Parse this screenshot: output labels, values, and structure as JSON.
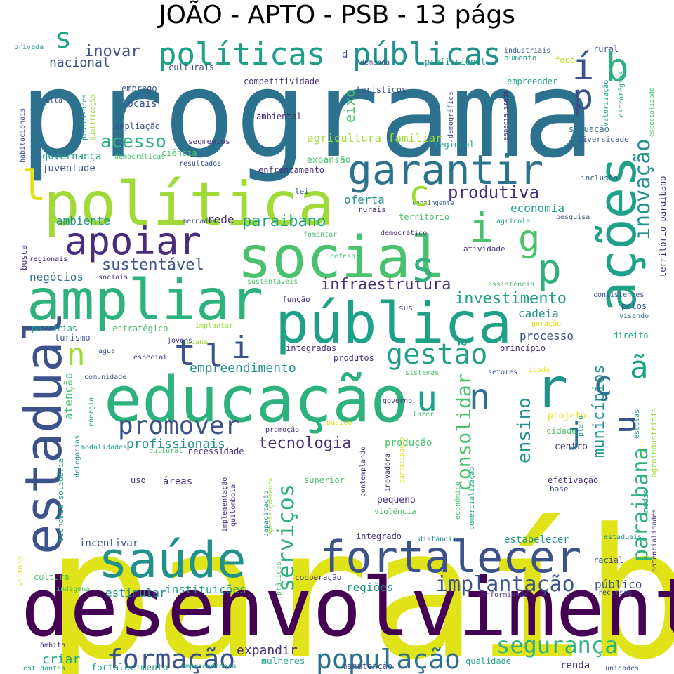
{
  "title": "JOÃO - APTO - PSB - 13 págs",
  "palette": {
    "yellow": "#dfe318",
    "lime": "#a0da39",
    "lgreen": "#4ac16d",
    "green": "#2db27d",
    "teal": "#1fa187",
    "cyan": "#21918c",
    "blue": "#2c728e",
    "navy": "#3b528b",
    "indigo": "#472d7b",
    "purple": "#440154",
    "paleyellow": "#c8e020"
  },
  "words": [
    {
      "text": "paraíba",
      "color": "yellow"
    },
    {
      "text": "programa",
      "color": "blue"
    },
    {
      "text": "desenvolvimento",
      "color": "purple"
    },
    {
      "text": "educação",
      "color": "green"
    },
    {
      "text": "política",
      "color": "lime"
    },
    {
      "text": "social",
      "color": "lgreen"
    },
    {
      "text": "ampliar",
      "color": "green"
    },
    {
      "text": "pública",
      "color": "teal"
    },
    {
      "text": "saúde",
      "color": "cyan"
    },
    {
      "text": "fortalecer",
      "color": "navy"
    },
    {
      "text": "estadual",
      "color": "navy"
    },
    {
      "text": "ações",
      "color": "teal"
    },
    {
      "text": "garantir",
      "color": "blue"
    },
    {
      "text": "apoiar",
      "color": "indigo"
    },
    {
      "text": "públicas",
      "color": "cyan"
    },
    {
      "text": "políticas",
      "color": "teal"
    },
    {
      "text": "promover",
      "color": "navy"
    },
    {
      "text": "gestão",
      "color": "teal"
    },
    {
      "text": "formação",
      "color": "navy"
    },
    {
      "text": "população",
      "color": "blue"
    },
    {
      "text": "segurança",
      "color": "green"
    },
    {
      "text": "serviços",
      "color": "green"
    },
    {
      "text": "implantação",
      "color": "navy"
    },
    {
      "text": "paraibana",
      "color": "green"
    },
    {
      "text": "inovação",
      "color": "cyan"
    },
    {
      "text": "consolidar",
      "color": "lgreen"
    },
    {
      "text": "ensino",
      "color": "cyan"
    },
    {
      "text": "tecnologia",
      "color": "indigo"
    },
    {
      "text": "municípios",
      "color": "cyan"
    },
    {
      "text": "produtiva",
      "color": "indigo"
    },
    {
      "text": "acesso",
      "color": "green"
    },
    {
      "text": "paraibano",
      "color": "teal"
    },
    {
      "text": "infraestrutura",
      "color": "indigo"
    },
    {
      "text": "investimento",
      "color": "teal"
    },
    {
      "text": "sustentável",
      "color": "navy"
    },
    {
      "text": "inovar",
      "color": "navy"
    },
    {
      "text": "nacional",
      "color": "navy"
    },
    {
      "text": "empreendimento",
      "color": "cyan"
    },
    {
      "text": "profissionais",
      "color": "cyan"
    },
    {
      "text": "expandir",
      "color": "indigo"
    },
    {
      "text": "criar",
      "color": "teal"
    },
    {
      "text": "estimular",
      "color": "cyan"
    },
    {
      "text": "instituições",
      "color": "teal"
    },
    {
      "text": "regiões",
      "color": "cyan"
    },
    {
      "text": "público",
      "color": "navy"
    },
    {
      "text": "eixo",
      "color": "lgreen"
    },
    {
      "text": "agricultura familiar",
      "color": "lime"
    },
    {
      "text": "economia",
      "color": "teal"
    },
    {
      "text": "oferta",
      "color": "cyan"
    },
    {
      "text": "rede",
      "color": "indigo"
    },
    {
      "text": "ambiente",
      "color": "cyan"
    },
    {
      "text": "negócios",
      "color": "blue"
    },
    {
      "text": "cadeia",
      "color": "cyan"
    },
    {
      "text": "processo",
      "color": "navy"
    },
    {
      "text": "atenção",
      "color": "lgreen"
    },
    {
      "text": "produção",
      "color": "lgreen"
    },
    {
      "text": "governança",
      "color": "teal"
    },
    {
      "text": "juventude",
      "color": "navy"
    },
    {
      "text": "locais",
      "color": "navy"
    },
    {
      "text": "culturais",
      "color": "navy"
    },
    {
      "text": "competitividade",
      "color": "indigo"
    },
    {
      "text": "profissional",
      "color": "teal"
    },
    {
      "text": "empreender",
      "color": "teal"
    },
    {
      "text": "rural",
      "color": "navy"
    },
    {
      "text": "foco",
      "color": "paleyellow"
    },
    {
      "text": "aumento",
      "color": "teal"
    },
    {
      "text": "industriais",
      "color": "navy"
    },
    {
      "text": "privada",
      "color": "cyan"
    },
    {
      "text": "turísticos",
      "color": "navy"
    },
    {
      "text": "emprego",
      "color": "navy"
    },
    {
      "text": "ampliação",
      "color": "navy"
    },
    {
      "text": "ambiental",
      "color": "indigo"
    },
    {
      "text": "segmentos",
      "color": "indigo"
    },
    {
      "text": "ciência",
      "color": "lgreen"
    },
    {
      "text": "democráticas",
      "color": "lgreen"
    },
    {
      "text": "resultados",
      "color": "navy"
    },
    {
      "text": "enfrentamento",
      "color": "indigo"
    },
    {
      "text": "expansão",
      "color": "lgreen"
    },
    {
      "text": "regional",
      "color": "teal"
    },
    {
      "text": "situação",
      "color": "blue"
    },
    {
      "text": "diversidade",
      "color": "navy"
    },
    {
      "text": "inclusão",
      "color": "navy"
    },
    {
      "text": "projeto",
      "color": "yellow"
    },
    {
      "text": "cidade",
      "color": "lgreen"
    },
    {
      "text": "centro",
      "color": "indigo"
    },
    {
      "text": "lei",
      "color": "navy"
    },
    {
      "text": "rurais",
      "color": "indigo"
    },
    {
      "text": "território",
      "color": "lgreen"
    },
    {
      "text": "mercados",
      "color": "navy"
    },
    {
      "text": "democrático",
      "color": "indigo"
    },
    {
      "text": "fomentar",
      "color": "lgreen"
    },
    {
      "text": "contingente",
      "color": "navy"
    },
    {
      "text": "pesquisa",
      "color": "navy"
    },
    {
      "text": "agrícola",
      "color": "teal"
    },
    {
      "text": "atividade",
      "color": "indigo"
    },
    {
      "text": "busca",
      "color": "indigo"
    },
    {
      "text": "regionais",
      "color": "indigo"
    },
    {
      "text": "sociais",
      "color": "indigo"
    },
    {
      "text": "defesa",
      "color": "lgreen"
    },
    {
      "text": "sustentáveis",
      "color": "lgreen"
    },
    {
      "text": "assistência",
      "color": "lgreen"
    },
    {
      "text": "função",
      "color": "indigo"
    },
    {
      "text": "sus",
      "color": "indigo"
    },
    {
      "text": "consistentes",
      "color": "navy"
    },
    {
      "text": "polos",
      "color": "navy"
    },
    {
      "text": "visando",
      "color": "blue"
    },
    {
      "text": "parcerias",
      "color": "teal"
    },
    {
      "text": "estratégico",
      "color": "lgreen"
    },
    {
      "text": "implantar",
      "color": "lime"
    },
    {
      "text": "geração",
      "color": "yellow"
    },
    {
      "text": "turismo",
      "color": "navy"
    },
    {
      "text": "jovens",
      "color": "indigo"
    },
    {
      "text": "cigana",
      "color": "lime"
    },
    {
      "text": "direito",
      "color": "teal"
    },
    {
      "text": "água",
      "color": "navy"
    },
    {
      "text": "especial",
      "color": "indigo"
    },
    {
      "text": "integradas",
      "color": "indigo"
    },
    {
      "text": "princípio",
      "color": "indigo"
    },
    {
      "text": "produtos",
      "color": "indigo"
    },
    {
      "text": "sistemas",
      "color": "lgreen"
    },
    {
      "text": "setores",
      "color": "navy"
    },
    {
      "text": "idade",
      "color": "yellow"
    },
    {
      "text": "comunidade",
      "color": "navy"
    },
    {
      "text": "governo",
      "color": "indigo"
    },
    {
      "text": "lazer",
      "color": "lgreen"
    },
    {
      "text": "promoção",
      "color": "indigo"
    },
    {
      "text": "básico",
      "color": "yellow"
    },
    {
      "text": "cultural",
      "color": "lgreen"
    },
    {
      "text": "necessidade",
      "color": "indigo"
    },
    {
      "text": "modalidades",
      "color": "teal"
    },
    {
      "text": "plano",
      "color": "teal"
    },
    {
      "text": "escolas",
      "color": "cyan"
    },
    {
      "text": "uso",
      "color": "indigo"
    },
    {
      "text": "áreas",
      "color": "indigo"
    },
    {
      "text": "superior",
      "color": "lgreen"
    },
    {
      "text": "efetivação",
      "color": "indigo"
    },
    {
      "text": "base",
      "color": "navy"
    },
    {
      "text": "pequeno",
      "color": "indigo"
    },
    {
      "text": "violência",
      "color": "lgreen"
    },
    {
      "text": "incentivar",
      "color": "navy"
    },
    {
      "text": "integrado",
      "color": "indigo"
    },
    {
      "text": "distância",
      "color": "cyan"
    },
    {
      "text": "estabelecer",
      "color": "cyan"
    },
    {
      "text": "estaduais",
      "color": "cyan"
    },
    {
      "text": "racial",
      "color": "navy"
    },
    {
      "text": "cultura",
      "color": "lgreen"
    },
    {
      "text": "indígena",
      "color": "lgreen"
    },
    {
      "text": "cooperação",
      "color": "indigo"
    },
    {
      "text": "conformidade",
      "color": "indigo"
    },
    {
      "text": "recursos",
      "color": "navy"
    },
    {
      "text": "fortalecimento",
      "color": "teal"
    },
    {
      "text": "empreendedora",
      "color": "teal"
    },
    {
      "text": "mulheres",
      "color": "teal"
    },
    {
      "text": "manutenção",
      "color": "navy"
    },
    {
      "text": "qualidade",
      "color": "teal"
    },
    {
      "text": "renda",
      "color": "indigo"
    },
    {
      "text": "unidades",
      "color": "navy"
    },
    {
      "text": "estudantes",
      "color": "teal"
    },
    {
      "text": "âmbito",
      "color": "indigo"
    },
    {
      "text": "voltado",
      "color": "yellow"
    },
    {
      "text": "alta",
      "color": "navy"
    },
    {
      "text": "demanda",
      "color": "navy"
    },
    {
      "text": "habitacionais",
      "color": "navy"
    },
    {
      "text": "professores",
      "color": "teal"
    },
    {
      "text": "qualificação",
      "color": "lime"
    },
    {
      "text": "demográfica",
      "color": "navy"
    },
    {
      "text": "especializada",
      "color": "indigo"
    },
    {
      "text": "valorização",
      "color": "teal"
    },
    {
      "text": "estratégias",
      "color": "teal"
    },
    {
      "text": "especializado",
      "color": "lgreen"
    },
    {
      "text": "território paraibano",
      "color": "indigo"
    },
    {
      "text": "energia",
      "color": "teal"
    },
    {
      "text": "economia solidária",
      "color": "teal"
    },
    {
      "text": "delegacias",
      "color": "cyan"
    },
    {
      "text": "implementação",
      "color": "indigo"
    },
    {
      "text": "quilombola",
      "color": "indigo"
    },
    {
      "text": "aperfeiçoamento",
      "color": "lime"
    },
    {
      "text": "práticas",
      "color": "lgreen"
    },
    {
      "text": "capacitação",
      "color": "cyan"
    },
    {
      "text": "contemplando",
      "color": "indigo"
    },
    {
      "text": "participação",
      "color": "yellow"
    },
    {
      "text": "comercialização",
      "color": "teal"
    },
    {
      "text": "inovadora",
      "color": "indigo"
    },
    {
      "text": "econômico",
      "color": "lgreen"
    },
    {
      "text": "agroindustriais",
      "color": "lime"
    },
    {
      "text": "médio",
      "color": "teal"
    },
    {
      "text": "potencialidades",
      "color": "indigo"
    },
    {
      "text": "s",
      "color": "teal"
    },
    {
      "text": "d",
      "color": "navy"
    },
    {
      "text": "í",
      "color": "navy"
    },
    {
      "text": "b",
      "color": "green"
    },
    {
      "text": "p",
      "color": "navy"
    },
    {
      "text": "l",
      "color": "yellow"
    },
    {
      "text": "c",
      "color": "lime"
    },
    {
      "text": "i",
      "color": "lgreen"
    },
    {
      "text": "g",
      "color": "lgreen"
    },
    {
      "text": "s",
      "color": "green"
    },
    {
      "text": "p",
      "color": "green"
    },
    {
      "text": "r",
      "color": "cyan"
    },
    {
      "text": "n",
      "color": "lime"
    },
    {
      "text": "t",
      "color": "navy"
    },
    {
      "text": "l",
      "color": "navy"
    },
    {
      "text": "i",
      "color": "navy"
    },
    {
      "text": "u",
      "color": "teal"
    },
    {
      "text": "n",
      "color": "blue"
    },
    {
      "text": "j",
      "color": "blue"
    },
    {
      "text": "ç",
      "color": "blue"
    },
    {
      "text": "ã",
      "color": "teal"
    },
    {
      "text": "u",
      "color": "navy"
    }
  ]
}
